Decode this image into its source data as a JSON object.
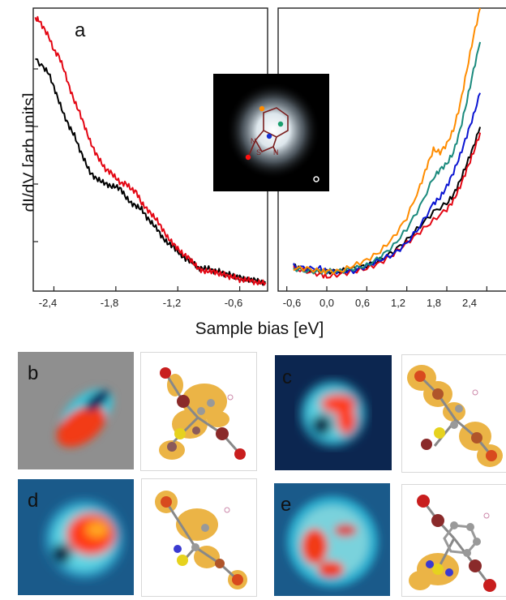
{
  "figure": {
    "ylabel": "dI/dV [arb.units]",
    "xlabel": "Sample bias [eV]",
    "panel_letters": {
      "a": "a",
      "b": "b",
      "c": "c",
      "d": "d",
      "e": "e"
    }
  },
  "chart_data": [
    {
      "type": "line",
      "panel": "a-left",
      "ylabel": "dI/dV [arb.units]",
      "xlabel": "Sample bias [eV]",
      "xlim": [
        -2.6,
        -0.33
      ],
      "ylim": [
        0,
        100
      ],
      "xticks": [
        "-2,4",
        "-1,8",
        "-1,2",
        "-0,6"
      ],
      "xtick_values": [
        -2.4,
        -1.8,
        -1.2,
        -0.6
      ],
      "series": [
        {
          "color": "#000000",
          "x": [
            -2.58,
            -2.5,
            -2.45,
            -2.4,
            -2.35,
            -2.3,
            -2.25,
            -2.2,
            -2.15,
            -2.1,
            -2.05,
            -2.0,
            -1.95,
            -1.9,
            -1.85,
            -1.8,
            -1.75,
            -1.7,
            -1.65,
            -1.6,
            -1.55,
            -1.5,
            -1.45,
            -1.4,
            -1.35,
            -1.3,
            -1.25,
            -1.2,
            -1.15,
            -1.1,
            -1.05,
            -1.0,
            -0.95,
            -0.9,
            -0.85,
            -0.8,
            -0.75,
            -0.7,
            -0.65,
            -0.6,
            -0.55,
            -0.5,
            -0.45,
            -0.4,
            -0.35
          ],
          "y": [
            82,
            79,
            77,
            72,
            67,
            62,
            58,
            55,
            50,
            46,
            42,
            40,
            39,
            38,
            37,
            37,
            36,
            33,
            31,
            30,
            29,
            26,
            24,
            22,
            19,
            17,
            16,
            14,
            12,
            11,
            10,
            8,
            8,
            8,
            7,
            7,
            6,
            6,
            5,
            5,
            4,
            4,
            4,
            3,
            3
          ]
        },
        {
          "color": "#e30613",
          "x": [
            -2.58,
            -2.55,
            -2.5,
            -2.45,
            -2.4,
            -2.35,
            -2.3,
            -2.25,
            -2.2,
            -2.15,
            -2.1,
            -2.05,
            -2.0,
            -1.95,
            -1.9,
            -1.85,
            -1.8,
            -1.75,
            -1.7,
            -1.65,
            -1.6,
            -1.55,
            -1.5,
            -1.45,
            -1.4,
            -1.35,
            -1.3,
            -1.25,
            -1.2,
            -1.15,
            -1.1,
            -1.05,
            -1.0,
            -0.95,
            -0.9,
            -0.85,
            -0.8,
            -0.75,
            -0.7,
            -0.65,
            -0.6,
            -0.55,
            -0.5,
            -0.45,
            -0.4,
            -0.35
          ],
          "y": [
            96,
            96,
            93,
            90,
            85,
            83,
            78,
            72,
            67,
            63,
            58,
            53,
            49,
            46,
            43,
            42,
            40,
            38,
            38,
            36,
            35,
            31,
            29,
            27,
            25,
            22,
            19,
            17,
            15,
            13,
            12,
            10,
            8,
            7,
            7,
            7,
            6,
            6,
            5,
            5,
            4,
            4,
            4,
            3,
            3,
            3
          ]
        }
      ]
    },
    {
      "type": "line",
      "panel": "a-right",
      "xlabel": "Sample bias [eV]",
      "xlim": [
        -0.73,
        2.7
      ],
      "ylim": [
        0,
        100
      ],
      "xticks": [
        "-0,6",
        "0,0",
        "0,6",
        "1,2",
        "1,8",
        "2,4"
      ],
      "xtick_values": [
        -0.6,
        0.0,
        0.6,
        1.2,
        1.8,
        2.4
      ],
      "series": [
        {
          "color": "#000000",
          "x": [
            -0.5,
            -0.4,
            -0.2,
            0,
            0.2,
            0.4,
            0.6,
            0.8,
            1.0,
            1.2,
            1.4,
            1.6,
            1.8,
            1.9,
            2.0,
            2.1,
            2.2,
            2.3
          ],
          "y": [
            9,
            8,
            7,
            7,
            7,
            8,
            9,
            11,
            14,
            18,
            23,
            28,
            31,
            34,
            39,
            45,
            51,
            58
          ]
        },
        {
          "color": "#e30613",
          "x": [
            -0.5,
            -0.3,
            -0.1,
            0,
            0.2,
            0.4,
            0.6,
            0.8,
            1.0,
            1.2,
            1.4,
            1.6,
            1.8,
            1.9,
            2.0,
            2.1,
            2.2,
            2.3
          ],
          "y": [
            8,
            7,
            6,
            5,
            6,
            7,
            8,
            10,
            13,
            17,
            21,
            25,
            29,
            32,
            37,
            43,
            49,
            56
          ]
        },
        {
          "color": "#0a14d2",
          "x": [
            -0.5,
            -0.3,
            -0.1,
            0,
            0.2,
            0.4,
            0.6,
            0.8,
            1.0,
            1.2,
            1.4,
            1.6,
            1.7,
            1.8,
            1.9,
            2.0,
            2.1,
            2.2,
            2.3
          ],
          "y": [
            9,
            8,
            8,
            7,
            7,
            7,
            9,
            11,
            13,
            17,
            23,
            31,
            33,
            37,
            42,
            48,
            55,
            62,
            70
          ]
        },
        {
          "color": "#1a8a7d",
          "x": [
            -0.5,
            -0.3,
            -0.1,
            0,
            0.2,
            0.4,
            0.6,
            0.8,
            1.0,
            1.2,
            1.4,
            1.6,
            1.7,
            1.8,
            1.9,
            2.0,
            2.1,
            2.2,
            2.3
          ],
          "y": [
            8,
            7,
            7,
            7,
            7,
            8,
            9,
            12,
            16,
            22,
            30,
            40,
            43,
            45,
            49,
            57,
            67,
            78,
            88
          ]
        },
        {
          "color": "#ff8c00",
          "x": [
            -0.5,
            -0.3,
            -0.1,
            0,
            0.2,
            0.4,
            0.6,
            0.8,
            1.0,
            1.2,
            1.4,
            1.5,
            1.6,
            1.7,
            1.8,
            1.9,
            2.0,
            2.1,
            2.2,
            2.3
          ],
          "y": [
            8,
            8,
            7,
            7,
            7,
            9,
            11,
            14,
            19,
            26,
            37,
            44,
            50,
            49,
            52,
            57,
            66,
            78,
            90,
            100
          ]
        }
      ]
    }
  ],
  "inset": {
    "marker_colors": [
      "#ff8c00",
      "#1a9e6e",
      "#1530d0",
      "#ff1010"
    ]
  },
  "colors": {
    "stm_background_dark": "#0b2347",
    "stm_background_gray": "#8a8a8a",
    "orbital": "#e8a826",
    "hot": "#ff3010",
    "cyan": "#3ad6e6"
  }
}
